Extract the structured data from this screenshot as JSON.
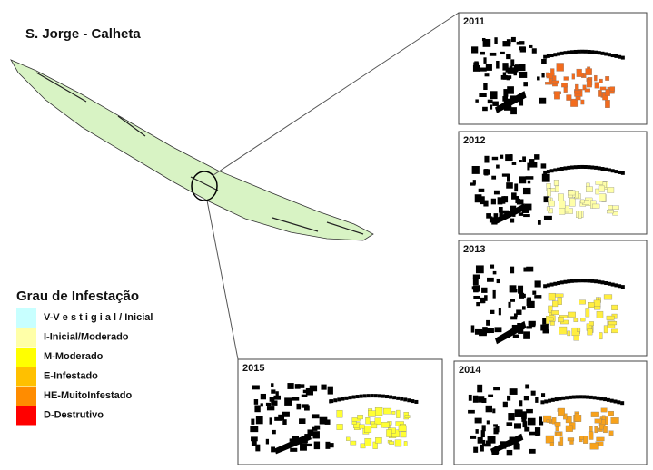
{
  "title": "S. Jorge - Calheta",
  "legend": {
    "title": "Grau de Infestação",
    "items": [
      {
        "label": "V-V e s t i g i a l / Inicial",
        "color": "#c8ffff"
      },
      {
        "label": "I-Inicial/Moderado",
        "color": "#ffffa8"
      },
      {
        "label": "M-Moderado",
        "color": "#ffff00"
      },
      {
        "label": "E-Infestado",
        "color": "#ffc000"
      },
      {
        "label": "HE-MuitoInfestado",
        "color": "#ff8c00"
      },
      {
        "label": "D-Destrutivo",
        "color": "#ff0000"
      }
    ]
  },
  "panels": [
    {
      "year": "2011",
      "color": "#f26b1d"
    },
    {
      "year": "2012",
      "color": "#ffffa8"
    },
    {
      "year": "2013",
      "color": "#ffee40"
    },
    {
      "year": "2014",
      "color": "#f7a21c"
    },
    {
      "year": "2015",
      "color": "#ffff33"
    }
  ]
}
